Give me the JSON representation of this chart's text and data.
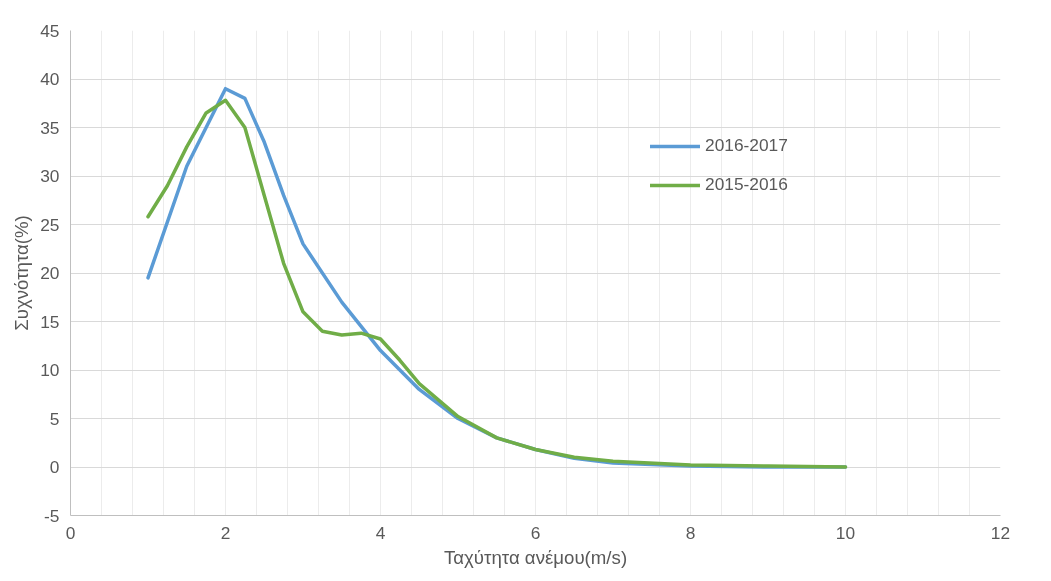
{
  "chart_data": {
    "type": "line",
    "xlabel": "Ταχύτητα ανέμου(m/s)",
    "ylabel": "Συχνότητα(%)",
    "xlim": [
      0,
      12
    ],
    "xticks": [
      0,
      2,
      4,
      6,
      8,
      10,
      12
    ],
    "ylim": [
      -5,
      45
    ],
    "yticks": [
      -5,
      0,
      5,
      10,
      15,
      20,
      25,
      30,
      35,
      40,
      45
    ],
    "grid": true,
    "legend": "right",
    "marker": "none",
    "line_style": "solid",
    "series": [
      {
        "name": "2016-2017",
        "color": "#5b9bd5",
        "x": [
          1,
          1.5,
          2,
          2.25,
          2.5,
          2.75,
          3,
          3.5,
          4,
          4.5,
          5,
          5.5,
          6,
          6.5,
          7,
          8,
          9,
          10
        ],
        "values": [
          19.5,
          31,
          39,
          38,
          33.5,
          28,
          23,
          17,
          12,
          8,
          5,
          3,
          1.8,
          0.9,
          0.4,
          0.1,
          0,
          0
        ]
      },
      {
        "name": "2015-2016",
        "color": "#70ad47",
        "x": [
          1,
          1.25,
          1.5,
          1.75,
          2,
          2.25,
          2.5,
          2.75,
          3,
          3.25,
          3.5,
          3.75,
          4,
          4.25,
          4.5,
          5,
          5.5,
          6,
          6.5,
          7,
          8,
          9,
          10
        ],
        "values": [
          25.8,
          29,
          33,
          36.5,
          37.8,
          35,
          28,
          21,
          16,
          14,
          13.6,
          13.8,
          13.2,
          11,
          8.6,
          5.2,
          3,
          1.8,
          1,
          0.6,
          0.2,
          0.1,
          0
        ]
      }
    ]
  }
}
